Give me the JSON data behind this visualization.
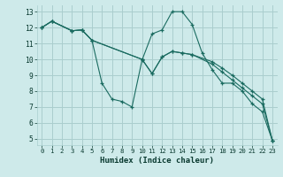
{
  "xlabel": "Humidex (Indice chaleur)",
  "bg_color": "#ceeaea",
  "grid_color": "#aacece",
  "line_color": "#1a6b60",
  "xlim": [
    -0.5,
    23.5
  ],
  "ylim": [
    4.6,
    13.4
  ],
  "xticks": [
    0,
    1,
    2,
    3,
    4,
    5,
    6,
    7,
    8,
    9,
    10,
    11,
    12,
    13,
    14,
    15,
    16,
    17,
    18,
    19,
    20,
    21,
    22,
    23
  ],
  "yticks": [
    5,
    6,
    7,
    8,
    9,
    10,
    11,
    12,
    13
  ],
  "series": [
    {
      "x": [
        0,
        1,
        3,
        4,
        5,
        6,
        7,
        8,
        9,
        10,
        11,
        12,
        13,
        14,
        15,
        16,
        17,
        18,
        19,
        20,
        21,
        22,
        23
      ],
      "y": [
        12,
        12.4,
        11.8,
        11.85,
        11.2,
        8.5,
        7.5,
        7.35,
        7.0,
        9.95,
        11.6,
        11.85,
        13.0,
        13.0,
        12.2,
        10.4,
        9.35,
        8.5,
        8.5,
        8.0,
        7.2,
        6.7,
        4.9
      ]
    },
    {
      "x": [
        0,
        1,
        3,
        4,
        5,
        10,
        11,
        12,
        13,
        14,
        15,
        17,
        18,
        19,
        20,
        21,
        22,
        23
      ],
      "y": [
        12,
        12.4,
        11.8,
        11.85,
        11.2,
        10.0,
        9.1,
        10.15,
        10.5,
        10.4,
        10.3,
        9.85,
        9.45,
        9.0,
        8.5,
        8.0,
        7.5,
        4.9
      ]
    },
    {
      "x": [
        0,
        1,
        3,
        4,
        5,
        10,
        11,
        12,
        13,
        14,
        15,
        17,
        18,
        19,
        20,
        21,
        22,
        23
      ],
      "y": [
        12,
        12.4,
        11.8,
        11.85,
        11.2,
        10.0,
        9.1,
        10.15,
        10.5,
        10.4,
        10.3,
        9.7,
        9.2,
        8.7,
        8.2,
        7.7,
        7.2,
        4.9
      ]
    }
  ]
}
